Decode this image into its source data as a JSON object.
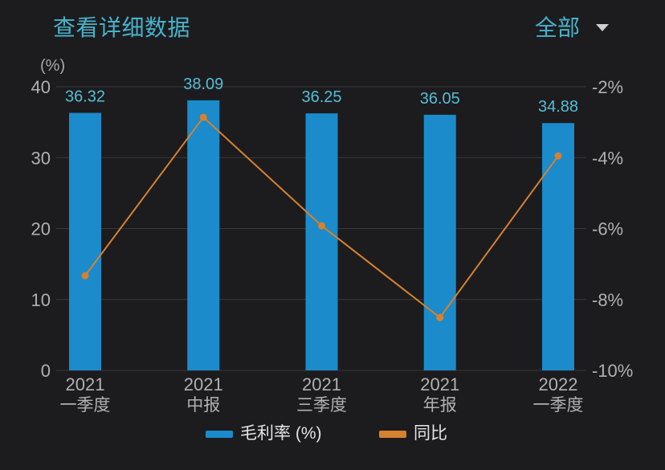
{
  "header": {
    "title": "查看详细数据",
    "filter": {
      "selected": "全部",
      "icon": "chevron-down-icon"
    }
  },
  "theme": {
    "background": "#1c1c1e",
    "accent": "#48b2cb",
    "caret_color": "#cfcfcf"
  },
  "chart_data": {
    "type": "bar",
    "categories": [
      {
        "year": "2021",
        "period": "一季度"
      },
      {
        "year": "2021",
        "period": "中报"
      },
      {
        "year": "2021",
        "period": "三季度"
      },
      {
        "year": "2021",
        "period": "年报"
      },
      {
        "year": "2022",
        "period": "一季度"
      }
    ],
    "series": [
      {
        "name": "毛利率 (%)",
        "type": "bar",
        "y_axis": "left",
        "color": "#1b8bcb",
        "label_color": "#55bdd5",
        "values": [
          36.32,
          38.09,
          36.25,
          36.05,
          34.88
        ]
      },
      {
        "name": "同比",
        "type": "line",
        "y_axis": "right",
        "color": "#d6812f",
        "values": [
          -7.33,
          -2.86,
          -5.92,
          -8.51,
          -3.95
        ]
      }
    ],
    "y_left": {
      "unit_label": "(%)",
      "range": [
        0,
        40
      ],
      "ticks": [
        {
          "value": 40,
          "label": "40"
        },
        {
          "value": 30,
          "label": "30"
        },
        {
          "value": 20,
          "label": "20"
        },
        {
          "value": 10,
          "label": "10"
        },
        {
          "value": 0,
          "label": "0"
        }
      ]
    },
    "y_right": {
      "range": [
        -10,
        -2
      ],
      "ticks": [
        {
          "value": -2,
          "label": "-2%"
        },
        {
          "value": -4,
          "label": "-4%"
        },
        {
          "value": -6,
          "label": "-6%"
        },
        {
          "value": -8,
          "label": "-8%"
        },
        {
          "value": -10,
          "label": "-10%"
        }
      ]
    },
    "grid": true,
    "legend_position": "bottom"
  }
}
